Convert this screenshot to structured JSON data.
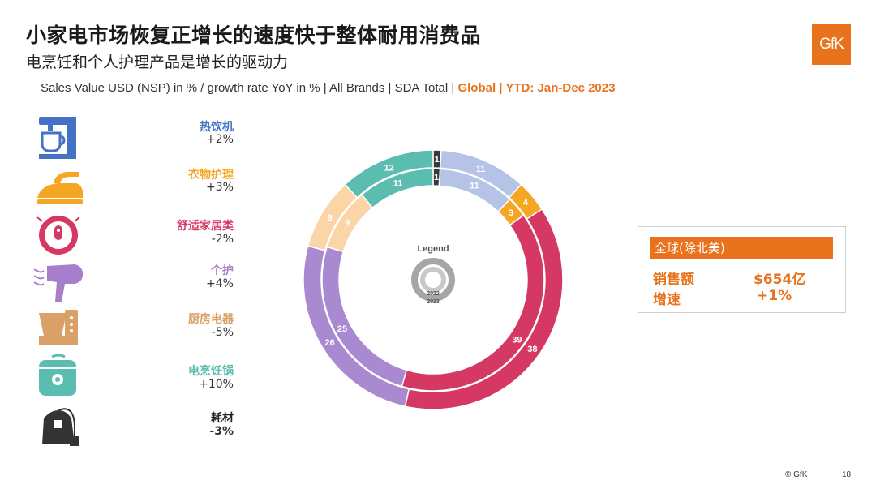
{
  "title": "小家电市场恢复正增长的速度快于整体耐用消费品",
  "subtitle": "电烹饪和个人护理产品是增长的驱动力",
  "source": {
    "main": "Sales Value USD (NSP) in % / growth rate YoY in % | All Brands |  SDA Total | ",
    "highlight": "Global | YTD: Jan-Dec 2023"
  },
  "logo": "GfK",
  "categories": [
    {
      "name": "热饮机",
      "growth": "+2%",
      "color": "#4472c4",
      "icon": "coffee-machine-icon"
    },
    {
      "name": "衣物护理",
      "growth": "+3%",
      "color": "#f5a623",
      "icon": "iron-icon"
    },
    {
      "name": "舒适家居类",
      "growth": "-2%",
      "color": "#d63864",
      "icon": "robot-vacuum-icon"
    },
    {
      "name": "个护",
      "growth": "+4%",
      "color": "#a77ecb",
      "icon": "hair-dryer-icon"
    },
    {
      "name": "厨房电器",
      "growth": "-5%",
      "color": "#d9a067",
      "icon": "kitchen-appliance-icon"
    },
    {
      "name": "电烹饪锅",
      "growth": "+10%",
      "color": "#5bbcb0",
      "icon": "rice-cooker-icon"
    },
    {
      "name": "耗材",
      "growth": "-3%",
      "color": "#333333",
      "icon": "tea-bag-icon"
    }
  ],
  "chart_data": {
    "type": "pie",
    "subtype": "double-donut",
    "legend": {
      "title": "Legend",
      "inner_label": "2022",
      "outer_label": "2023"
    },
    "categories": [
      "耗材",
      "热饮机",
      "衣物护理",
      "舒适家居类",
      "个护",
      "厨房电器",
      "电烹饪锅"
    ],
    "series": [
      {
        "name": "2023",
        "ring": "outer",
        "values": [
          1,
          11,
          4,
          38,
          26,
          9,
          12
        ]
      },
      {
        "name": "2022",
        "ring": "inner",
        "values": [
          1,
          11,
          3,
          39,
          25,
          9,
          11
        ]
      }
    ],
    "colors": [
      "#3a3a3a",
      "#b4c3e6",
      "#f5a623",
      "#d63864",
      "#a98ad0",
      "#fbd5a8",
      "#5bbcb0"
    ]
  },
  "summary": {
    "region": "全球(除北美)",
    "sales_label": "销售额",
    "sales_value": "$654亿",
    "growth_label": "增速",
    "growth_value": "+1%"
  },
  "footer": {
    "copyright": "© GfK",
    "page": "18"
  }
}
